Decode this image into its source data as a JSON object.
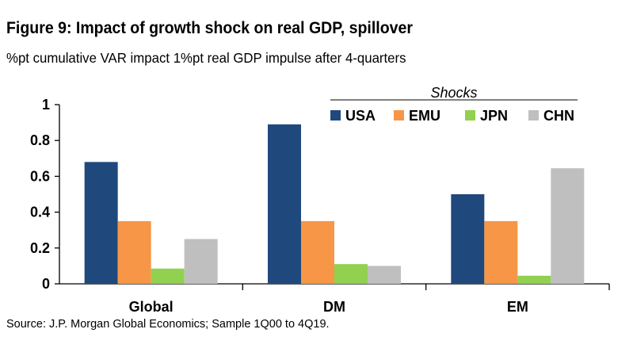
{
  "title": "Figure 9: Impact of growth shock on real GDP, spillover",
  "subtitle": "%pt cumulative VAR impact 1%pt real GDP impulse after 4-quarters",
  "source": "Source: J.P. Morgan Global Economics; Sample 1Q00 to 4Q19.",
  "chart_data": {
    "type": "bar",
    "title": "Figure 9: Impact of growth shock on real GDP, spillover",
    "subtitle": "%pt cumulative VAR impact 1%pt real GDP impulse after 4-quarters",
    "xlabel": "",
    "ylabel": "",
    "categories": [
      "Global",
      "DM",
      "EM"
    ],
    "legend_title": "Shocks",
    "legend_position": "top-right",
    "ylim": [
      0,
      1
    ],
    "yticks": [
      "0",
      "0.2",
      "0.4",
      "0.6",
      "0.8",
      "1"
    ],
    "grid": false,
    "series": [
      {
        "name": "USA",
        "color": "#1f497d",
        "values": [
          0.68,
          0.89,
          0.5
        ]
      },
      {
        "name": "EMU",
        "color": "#f79646",
        "values": [
          0.35,
          0.35,
          0.35
        ]
      },
      {
        "name": "JPN",
        "color": "#92d050",
        "values": [
          0.085,
          0.11,
          0.045
        ]
      },
      {
        "name": "CHN",
        "color": "#bfbfbf",
        "values": [
          0.25,
          0.1,
          0.645
        ]
      }
    ]
  }
}
